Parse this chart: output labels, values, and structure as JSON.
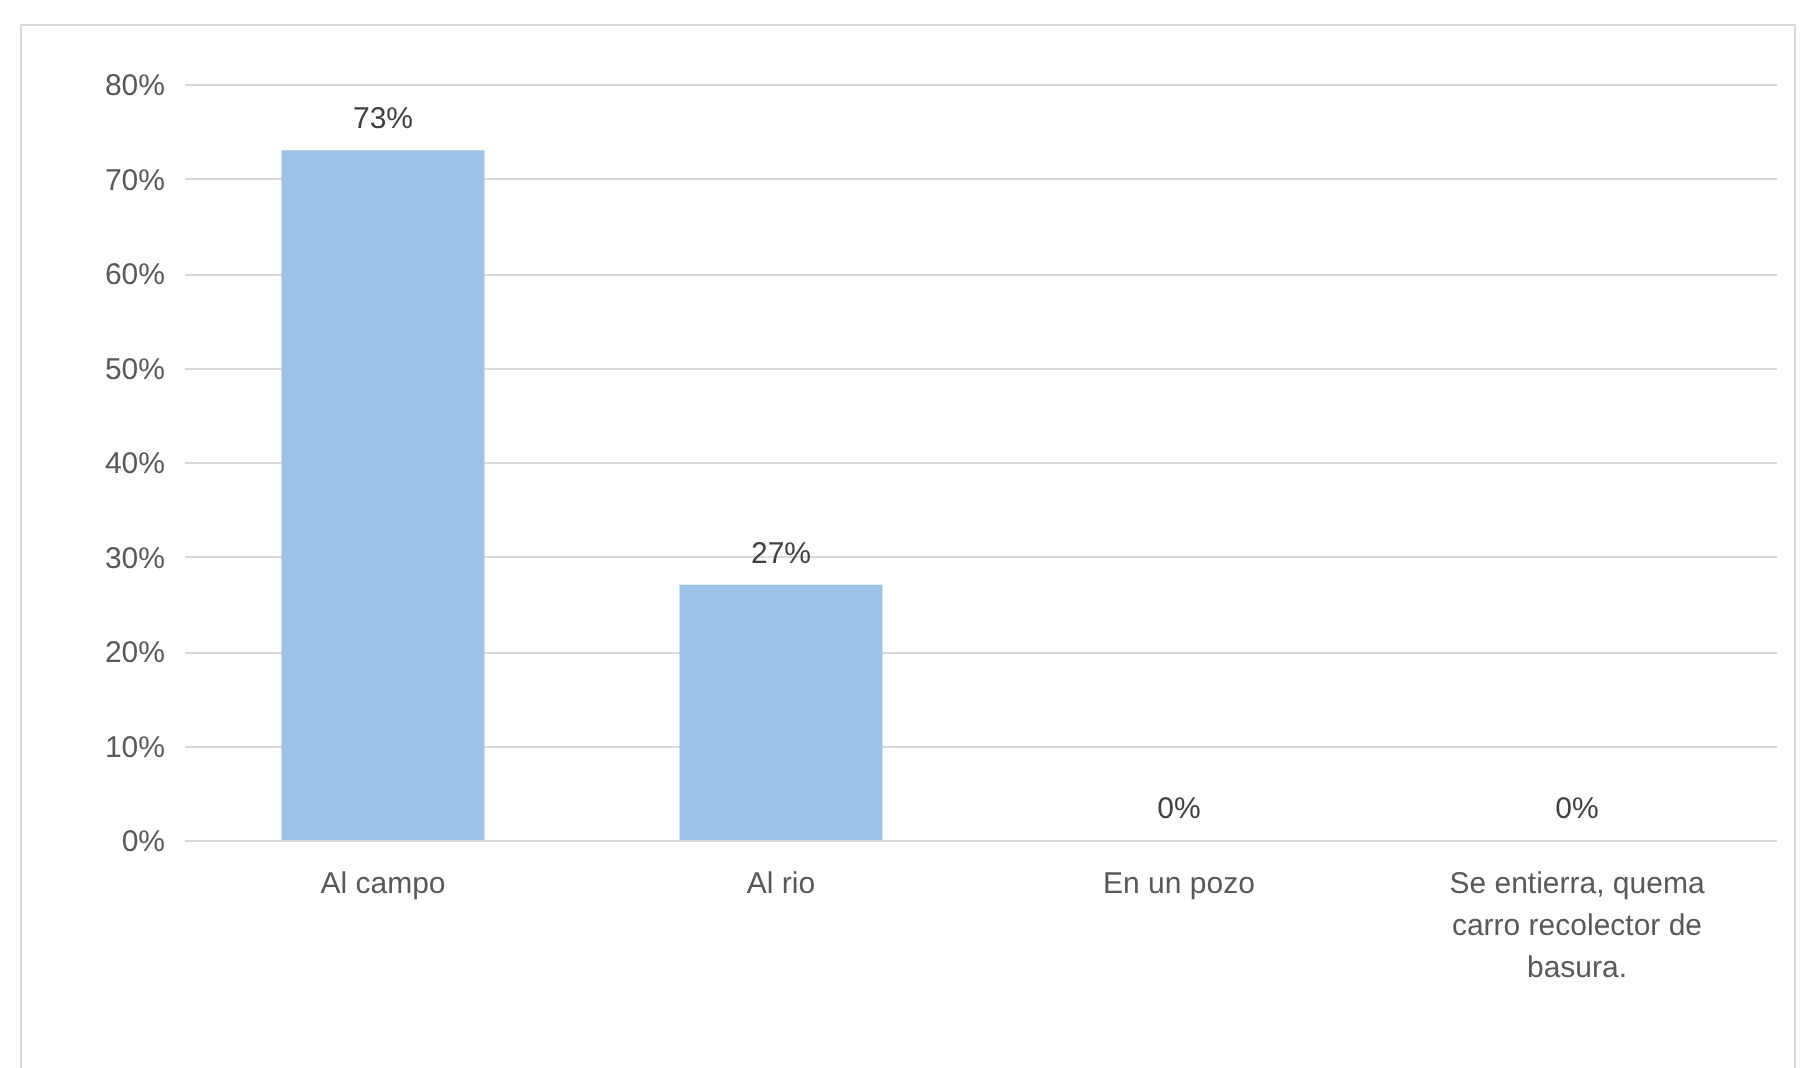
{
  "chart_data": {
    "type": "bar",
    "categories": [
      "Al campo",
      "Al rio",
      "En un pozo",
      "Se entierra, quema carro recolector de basura."
    ],
    "values": [
      73,
      27,
      0,
      0
    ],
    "value_labels": [
      "73%",
      "27%",
      "0%",
      "0%"
    ],
    "color": "#9dc3e6",
    "ylim": [
      0,
      80
    ],
    "yticks": [
      {
        "value": 0,
        "label": "0%"
      },
      {
        "value": 10,
        "label": "10%"
      },
      {
        "value": 20,
        "label": "20%"
      },
      {
        "value": 30,
        "label": "30%"
      },
      {
        "value": 40,
        "label": "40%"
      },
      {
        "value": 50,
        "label": "50%"
      },
      {
        "value": 60,
        "label": "60%"
      },
      {
        "value": 70,
        "label": "70%"
      },
      {
        "value": 80,
        "label": "80%"
      }
    ],
    "grid": "y"
  }
}
